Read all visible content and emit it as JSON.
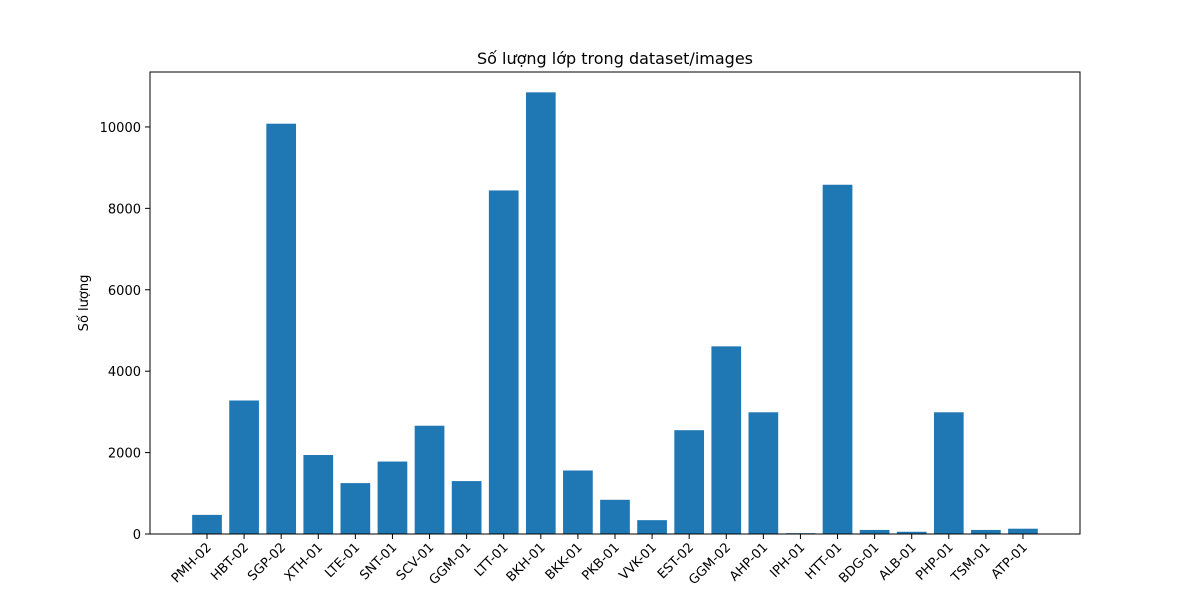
{
  "chart_data": {
    "type": "bar",
    "title": "Số lượng lớp trong dataset/images",
    "ylabel": "Số lượng",
    "xlabel": "",
    "categories": [
      "PMH-02",
      "HBT-02",
      "SGP-02",
      "XTH-01",
      "LTE-01",
      "SNT-01",
      "SCV-01",
      "GGM-01",
      "LTT-01",
      "BKH-01",
      "BKK-01",
      "PKB-01",
      "VVK-01",
      "EST-02",
      "GGM-02",
      "AHP-01",
      "IPH-01",
      "HTT-01",
      "BDG-01",
      "ALB-01",
      "PHP-01",
      "TSM-01",
      "ATP-01"
    ],
    "values": [
      470,
      3280,
      10080,
      1940,
      1250,
      1780,
      2660,
      1300,
      8440,
      10850,
      1560,
      840,
      340,
      2550,
      4610,
      2990,
      20,
      8580,
      100,
      55,
      2990,
      100,
      130
    ],
    "ylim": [
      0,
      11350
    ],
    "yticks": [
      "0",
      "2000",
      "4000",
      "6000",
      "8000",
      "10000"
    ],
    "grid": false,
    "color": "#1f77b4"
  }
}
